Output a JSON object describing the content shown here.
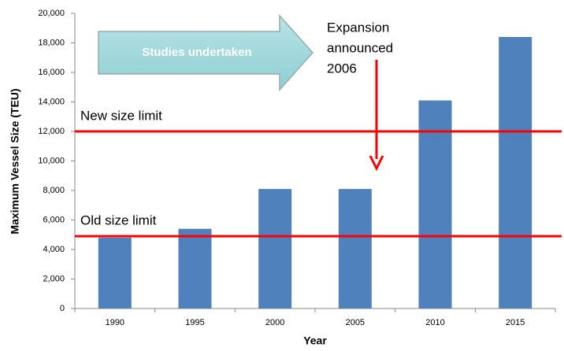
{
  "chart_data": {
    "type": "bar",
    "x_label": "Year",
    "y_label": "Maximum Vessel Size (TEU)",
    "categories": [
      "1990",
      "1995",
      "2000",
      "2005",
      "2010",
      "2015"
    ],
    "values": [
      4800,
      5400,
      8100,
      8100,
      14100,
      18400
    ],
    "color": "#4f81bd",
    "ylim": [
      0,
      20000
    ],
    "yticks": [
      0,
      {
        "value": 2000,
        "label": "2,000"
      },
      {
        "value": 4000,
        "label": "4,000"
      },
      {
        "value": 6000,
        "label": "6,000"
      },
      {
        "value": 8000,
        "label": "8,000"
      },
      {
        "value": 10000,
        "label": "10,000"
      },
      {
        "value": 12000,
        "label": "12,000"
      },
      {
        "value": 14000,
        "label": "14,000"
      },
      {
        "value": 16000,
        "label": "16,000"
      },
      {
        "value": 18000,
        "label": "18,000"
      },
      {
        "value": 20000,
        "label": "20,000"
      }
    ],
    "grid": false,
    "reference_lines": [
      {
        "label": "New size limit",
        "value": 12000,
        "color": "#ff0000"
      },
      {
        "label": "Old size limit",
        "value": 4900,
        "color": "#ff0000"
      }
    ],
    "banner": "Studies undertaken",
    "callout": [
      "Expansion",
      "announced",
      "2006"
    ]
  }
}
